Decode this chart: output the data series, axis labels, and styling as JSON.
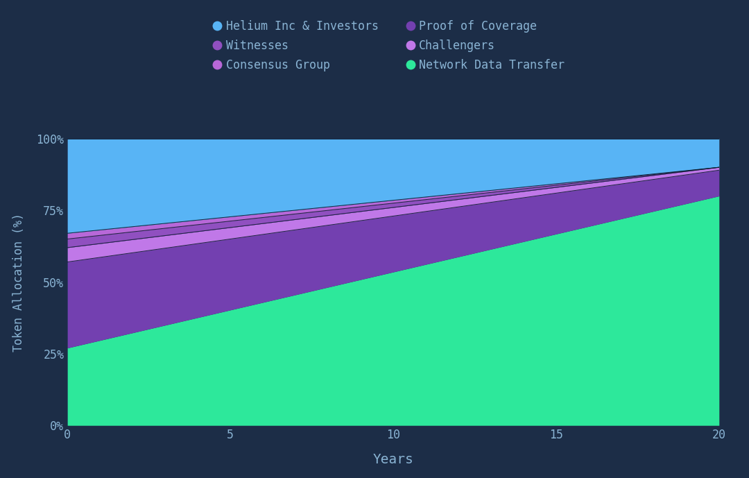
{
  "background_color": "#1c2d47",
  "plot_bg_color": "#1e3255",
  "text_color": "#8ab4d4",
  "years": [
    0,
    20
  ],
  "series_bottom_to_top": [
    {
      "label": "Network Data Transfer",
      "color": "#2de89b",
      "values": [
        27,
        80
      ]
    },
    {
      "label": "Proof of Coverage",
      "color": "#7340b0",
      "values": [
        30,
        9
      ]
    },
    {
      "label": "Challengers",
      "color": "#c078e8",
      "values": [
        5,
        1
      ]
    },
    {
      "label": "Witnesses",
      "color": "#9050c0",
      "values": [
        3,
        0
      ]
    },
    {
      "label": "Consensus Group",
      "color": "#b868d8",
      "values": [
        2,
        0
      ]
    },
    {
      "label": "Helium Inc & Investors",
      "color": "#58b4f5",
      "values": [
        33,
        10
      ]
    }
  ],
  "xlabel": "Years",
  "ylabel": "Token Allocation (%)",
  "yticks": [
    0,
    25,
    50,
    75,
    100
  ],
  "ytick_labels": [
    "0%",
    "25%",
    "50%",
    "75%",
    "100%"
  ],
  "xticks": [
    0,
    5,
    10,
    15,
    20
  ],
  "xlim": [
    0,
    20
  ],
  "ylim": [
    0,
    100
  ],
  "legend_order": [
    {
      "label": "Helium Inc & Investors",
      "color": "#58b4f5"
    },
    {
      "label": "Witnesses",
      "color": "#9050c0"
    },
    {
      "label": "Consensus Group",
      "color": "#b868d8"
    },
    {
      "label": "Proof of Coverage",
      "color": "#7340b0"
    },
    {
      "label": "Challengers",
      "color": "#c078e8"
    },
    {
      "label": "Network Data Transfer",
      "color": "#2de89b"
    }
  ]
}
